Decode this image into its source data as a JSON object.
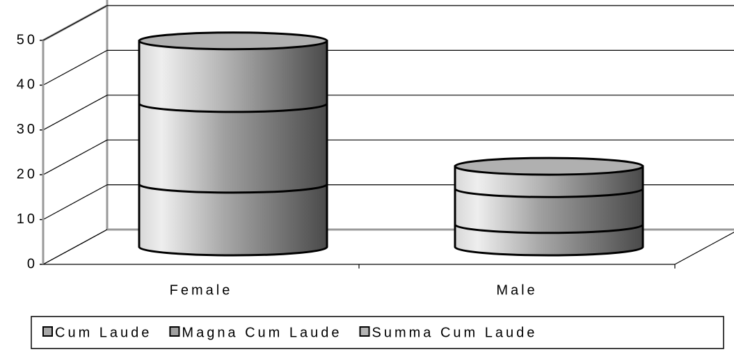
{
  "chart_data": {
    "type": "bar3d_stacked_cylinder",
    "categories": [
      "Female",
      "Male"
    ],
    "series": [
      {
        "name": "Cum Laude",
        "color": "#a8a8a8",
        "values": [
          14,
          5
        ]
      },
      {
        "name": "Magna Cum Laude",
        "color": "#a0a0a0",
        "values": [
          18,
          8
        ]
      },
      {
        "name": "Summa Cum Laude",
        "color": "#b4b4b4",
        "values": [
          14,
          5
        ]
      }
    ],
    "ylim": [
      0,
      50
    ],
    "yticks": [
      0,
      10,
      20,
      30,
      40,
      50
    ],
    "grid": true,
    "legend": "bottom"
  }
}
